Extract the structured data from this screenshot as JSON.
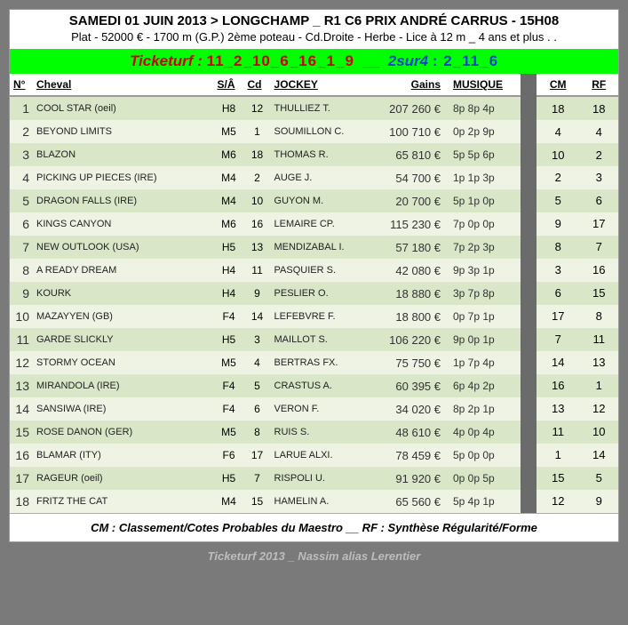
{
  "header": {
    "title": "SAMEDI 01 JUIN 2013 > LONGCHAMP _ R1 C6 PRIX ANDRÉ CARRUS - 15H08",
    "subtitle": "Plat - 52000 € - 1700 m (G.P.) 2ème poteau - Cd.Droite - Herbe - Lice à 12 m _ 4 ans et plus . ."
  },
  "picks": {
    "ticketurf_label": "Ticketurf :",
    "ticketurf": "11_2_10_6_16_1_9",
    "separator": "__",
    "sur4_label": "2sur4",
    "sur4": ": 2_11_6"
  },
  "columns": {
    "num": "N°",
    "cheval": "Cheval",
    "sa": "S/Â",
    "cd": "Cd",
    "jockey": "JOCKEY",
    "gains": "Gains",
    "musique": "MUSIQUE",
    "cm": "CM",
    "rf": "RF"
  },
  "rows": [
    {
      "n": "1",
      "cheval": "COOL STAR (oeil)",
      "sa": "H8",
      "cd": "12",
      "jockey": "THULLIEZ T.",
      "gains": "207 260 €",
      "musique": "8p 8p 4p",
      "cm": "18",
      "rf": "18"
    },
    {
      "n": "2",
      "cheval": "BEYOND LIMITS",
      "sa": "M5",
      "cd": "1",
      "jockey": "SOUMILLON C.",
      "gains": "100 710 €",
      "musique": "0p 2p 9p",
      "cm": "4",
      "rf": "4"
    },
    {
      "n": "3",
      "cheval": "BLAZON",
      "sa": "M6",
      "cd": "18",
      "jockey": "THOMAS R.",
      "gains": "65 810 €",
      "musique": "5p 5p 6p",
      "cm": "10",
      "rf": "2"
    },
    {
      "n": "4",
      "cheval": "PICKING UP PIECES (IRE)",
      "sa": "M4",
      "cd": "2",
      "jockey": "AUGE J.",
      "gains": "54 700 €",
      "musique": "1p 1p 3p",
      "cm": "2",
      "rf": "3"
    },
    {
      "n": "5",
      "cheval": "DRAGON FALLS (IRE)",
      "sa": "M4",
      "cd": "10",
      "jockey": "GUYON M.",
      "gains": "20 700 €",
      "musique": "5p 1p 0p",
      "cm": "5",
      "rf": "6"
    },
    {
      "n": "6",
      "cheval": "KINGS CANYON",
      "sa": "M6",
      "cd": "16",
      "jockey": "LEMAIRE CP.",
      "gains": "115 230 €",
      "musique": "7p 0p 0p",
      "cm": "9",
      "rf": "17"
    },
    {
      "n": "7",
      "cheval": "NEW OUTLOOK (USA)",
      "sa": "H5",
      "cd": "13",
      "jockey": "MENDIZABAL I.",
      "gains": "57 180 €",
      "musique": "7p 2p 3p",
      "cm": "8",
      "rf": "7"
    },
    {
      "n": "8",
      "cheval": "A READY DREAM",
      "sa": "H4",
      "cd": "11",
      "jockey": "PASQUIER S.",
      "gains": "42 080 €",
      "musique": "9p 3p 1p",
      "cm": "3",
      "rf": "16"
    },
    {
      "n": "9",
      "cheval": "KOURK",
      "sa": "H4",
      "cd": "9",
      "jockey": "PESLIER O.",
      "gains": "18 880 €",
      "musique": "3p 7p 8p",
      "cm": "6",
      "rf": "15"
    },
    {
      "n": "10",
      "cheval": "MAZAYYEN (GB)",
      "sa": "F4",
      "cd": "14",
      "jockey": "LEFEBVRE F.",
      "gains": "18 800 €",
      "musique": "0p 7p 1p",
      "cm": "17",
      "rf": "8"
    },
    {
      "n": "11",
      "cheval": "GARDE SLICKLY",
      "sa": "H5",
      "cd": "3",
      "jockey": "MAILLOT S.",
      "gains": "106 220 €",
      "musique": "9p 0p 1p",
      "cm": "7",
      "rf": "11"
    },
    {
      "n": "12",
      "cheval": "STORMY OCEAN",
      "sa": "M5",
      "cd": "4",
      "jockey": "BERTRAS FX.",
      "gains": "75 750 €",
      "musique": "1p 7p 4p",
      "cm": "14",
      "rf": "13"
    },
    {
      "n": "13",
      "cheval": "MIRANDOLA (IRE)",
      "sa": "F4",
      "cd": "5",
      "jockey": "CRASTUS A.",
      "gains": "60 395 €",
      "musique": "6p 4p 2p",
      "cm": "16",
      "rf": "1"
    },
    {
      "n": "14",
      "cheval": "SANSIWA (IRE)",
      "sa": "F4",
      "cd": "6",
      "jockey": "VERON F.",
      "gains": "34 020 €",
      "musique": "8p 2p 1p",
      "cm": "13",
      "rf": "12"
    },
    {
      "n": "15",
      "cheval": "ROSE DANON (GER)",
      "sa": "M5",
      "cd": "8",
      "jockey": "RUIS S.",
      "gains": "48 610 €",
      "musique": "4p 0p 4p",
      "cm": "11",
      "rf": "10"
    },
    {
      "n": "16",
      "cheval": "BLAMAR (ITY)",
      "sa": "F6",
      "cd": "17",
      "jockey": "LARUE ALXI.",
      "gains": "78 459 €",
      "musique": "5p 0p 0p",
      "cm": "1",
      "rf": "14"
    },
    {
      "n": "17",
      "cheval": "RAGEUR (oeil)",
      "sa": "H5",
      "cd": "7",
      "jockey": "RISPOLI U.",
      "gains": "91 920 €",
      "musique": "0p 0p 5p",
      "cm": "15",
      "rf": "5"
    },
    {
      "n": "18",
      "cheval": "FRITZ THE CAT",
      "sa": "M4",
      "cd": "15",
      "jockey": "HAMELIN A.",
      "gains": "65 560 €",
      "musique": "5p 4p 1p",
      "cm": "12",
      "rf": "9"
    }
  ],
  "legend": "CM : Classement/Cotes Probables du Maestro  __ RF : Synthèse Régularité/Forme",
  "credit": "Ticketurf 2013 _ Nassim alias Lerentier",
  "style": {
    "row_even": "#d9e6c8",
    "row_odd": "#eef3e4",
    "green_bar": "#00ff00",
    "bg": "#7a7a7a"
  }
}
